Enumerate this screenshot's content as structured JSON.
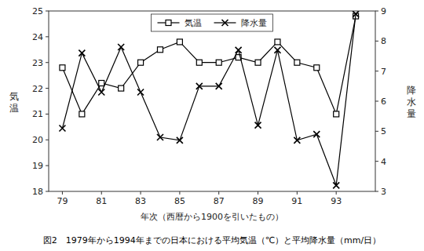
{
  "chart_data": {
    "type": "line",
    "x": [
      79,
      80,
      81,
      82,
      83,
      84,
      85,
      86,
      87,
      88,
      89,
      90,
      91,
      92,
      93,
      94
    ],
    "series": [
      {
        "name": "気温",
        "color": "black",
        "marker": "square",
        "values": [
          22.8,
          21.0,
          22.2,
          22.0,
          23.0,
          23.5,
          23.8,
          23.0,
          23.0,
          23.2,
          23.0,
          23.8,
          23.0,
          22.8,
          21.0,
          24.8
        ]
      },
      {
        "name": "降水量",
        "color": "black",
        "marker": "x",
        "axis": "y2",
        "values": [
          5.1,
          7.6,
          6.3,
          7.8,
          6.3,
          4.8,
          4.7,
          6.5,
          6.5,
          7.7,
          5.2,
          7.7,
          4.7,
          4.9,
          3.2,
          8.9
        ]
      }
    ],
    "xlim": [
      78.3,
      95.0
    ],
    "xticks": [
      79,
      81,
      83,
      85,
      87,
      89,
      91,
      93
    ],
    "ylim": [
      18,
      25
    ],
    "yticks": [
      18,
      19,
      20,
      21,
      22,
      23,
      24,
      25
    ],
    "y2lim": [
      3,
      9
    ],
    "y2ticks": [
      3,
      4,
      5,
      6,
      7,
      8,
      9
    ],
    "x_label": "年次（西暦から1900を引いたもの）",
    "y_label": "気\n温",
    "y2_label": "降\n水\n量",
    "caption": "図2　1979年から1994年までの日本における平均気温（℃）と平均降水量（mm/日）",
    "legend": "top",
    "grid": false
  }
}
